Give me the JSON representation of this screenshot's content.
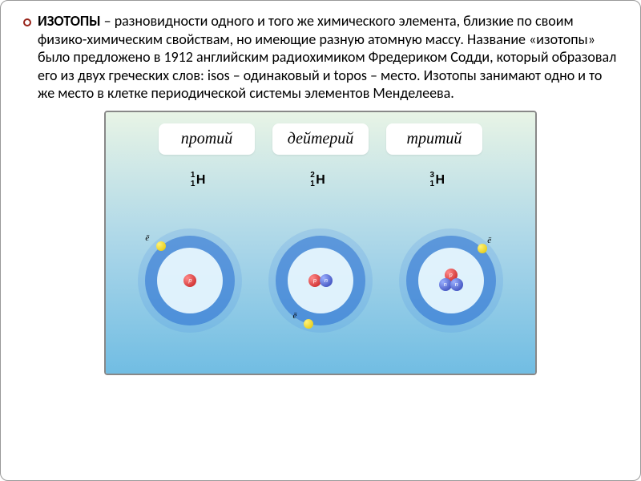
{
  "text": {
    "term": "ИЗОТОПЫ",
    "definition": " – разновидности одного и того же химического элемента, близкие по своим физико-химическим свойствам, но имеющие разную атомную массу. Название «изотопы» было предложено в 1912 английским радиохимиком Фредериком Содди, который образовал его из двух греческих слов: isos – одинаковый и topos – место. Изотопы занимают одно и то же место в клетке периодической системы элементов Менделеева."
  },
  "diagram": {
    "bg_top": "#e8f4e6",
    "bg_mid": "#a6d4e8",
    "bg_bot": "#71bde3",
    "border_color": "#888888",
    "label_bg": "#ffffff",
    "label_font": "Times New Roman",
    "label_fontsize": 20,
    "orbit_outer_color": "rgba(70,140,230,0.18)",
    "orbit_band_color": "rgba(40,110,210,0.55)",
    "orbit_inner_color": "rgba(235,250,255,0.92)",
    "proton_color": "#c21818",
    "neutron_color": "#2a3bb0",
    "electron_color": "#e0c400",
    "isotopes": [
      {
        "name": "протий",
        "mass": "1",
        "z": "1",
        "symbol": "H",
        "protons": 1,
        "neutrons": 0,
        "e_angle_deg": 130,
        "e_label": "ē"
      },
      {
        "name": "дейтерий",
        "mass": "2",
        "z": "1",
        "symbol": "H",
        "protons": 1,
        "neutrons": 1,
        "e_angle_deg": 255,
        "e_label": "ē"
      },
      {
        "name": "тритий",
        "mass": "3",
        "z": "1",
        "symbol": "H",
        "protons": 1,
        "neutrons": 2,
        "e_angle_deg": 45,
        "e_label": "ē"
      }
    ]
  },
  "styling": {
    "bullet_border": "#98241a",
    "body_fontsize": 18,
    "body_lineheight": 1.25
  }
}
